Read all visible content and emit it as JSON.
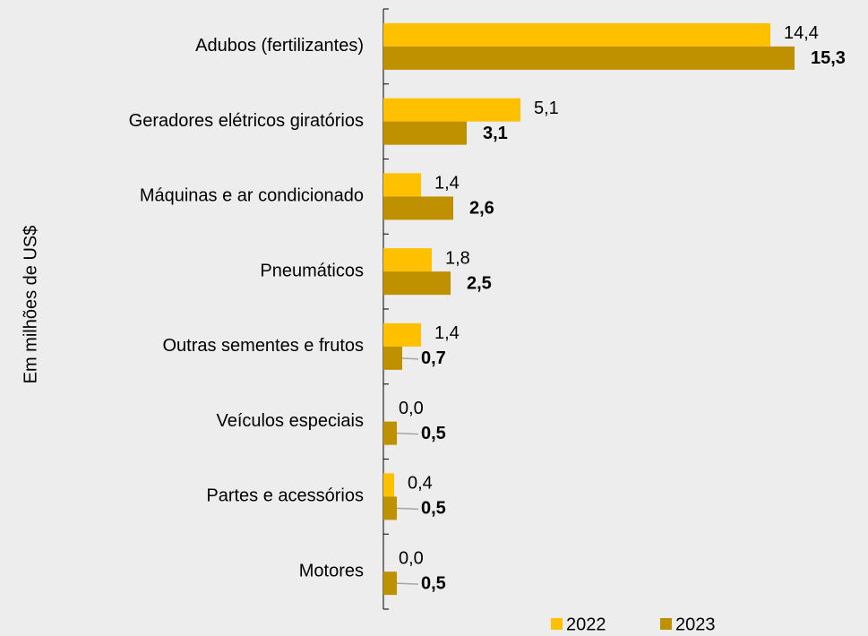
{
  "chart_data": {
    "type": "barh",
    "y_label": "Em milhões de US$",
    "categories": [
      "Adubos (fertilizantes)",
      "Geradores elétricos giratórios",
      "Máquinas e ar condicionado",
      "Pneumáticos",
      "Outras sementes e frutos",
      "Veículos especiais",
      "Partes e acessórios",
      "Motores"
    ],
    "series": [
      {
        "name": "2022",
        "color": "#ffc000",
        "values": [
          14.4,
          5.1,
          1.4,
          1.8,
          1.4,
          0.0,
          0.4,
          0.0
        ],
        "value_labels": [
          "14,4",
          "5,1",
          "1,4",
          "1,8",
          "1,4",
          "0,0",
          "0,4",
          "0,0"
        ]
      },
      {
        "name": "2023",
        "color": "#bf9000",
        "values": [
          15.3,
          3.1,
          2.6,
          2.5,
          0.7,
          0.5,
          0.5,
          0.5
        ],
        "value_labels": [
          "15,3",
          "3,1",
          "2,6",
          "2,5",
          "0,7",
          "0,5",
          "0,5",
          "0,5"
        ]
      }
    ],
    "xlim": [
      0,
      18
    ],
    "legend": "bottom"
  }
}
